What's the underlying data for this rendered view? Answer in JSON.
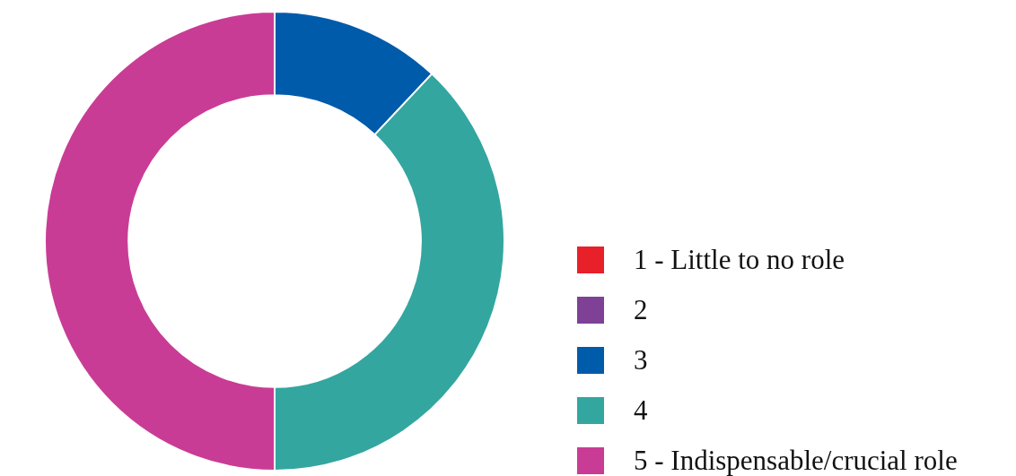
{
  "chart_data": {
    "type": "donut",
    "categories": [
      "1 - Little to no role",
      "2",
      "3",
      "4",
      "5 - Indispensable/crucial role"
    ],
    "values": [
      0,
      0,
      12,
      38,
      50
    ],
    "colors": [
      "#e8202a",
      "#7e4196",
      "#005bab",
      "#33a6a0",
      "#c93c95"
    ],
    "legend": "bottom right"
  }
}
